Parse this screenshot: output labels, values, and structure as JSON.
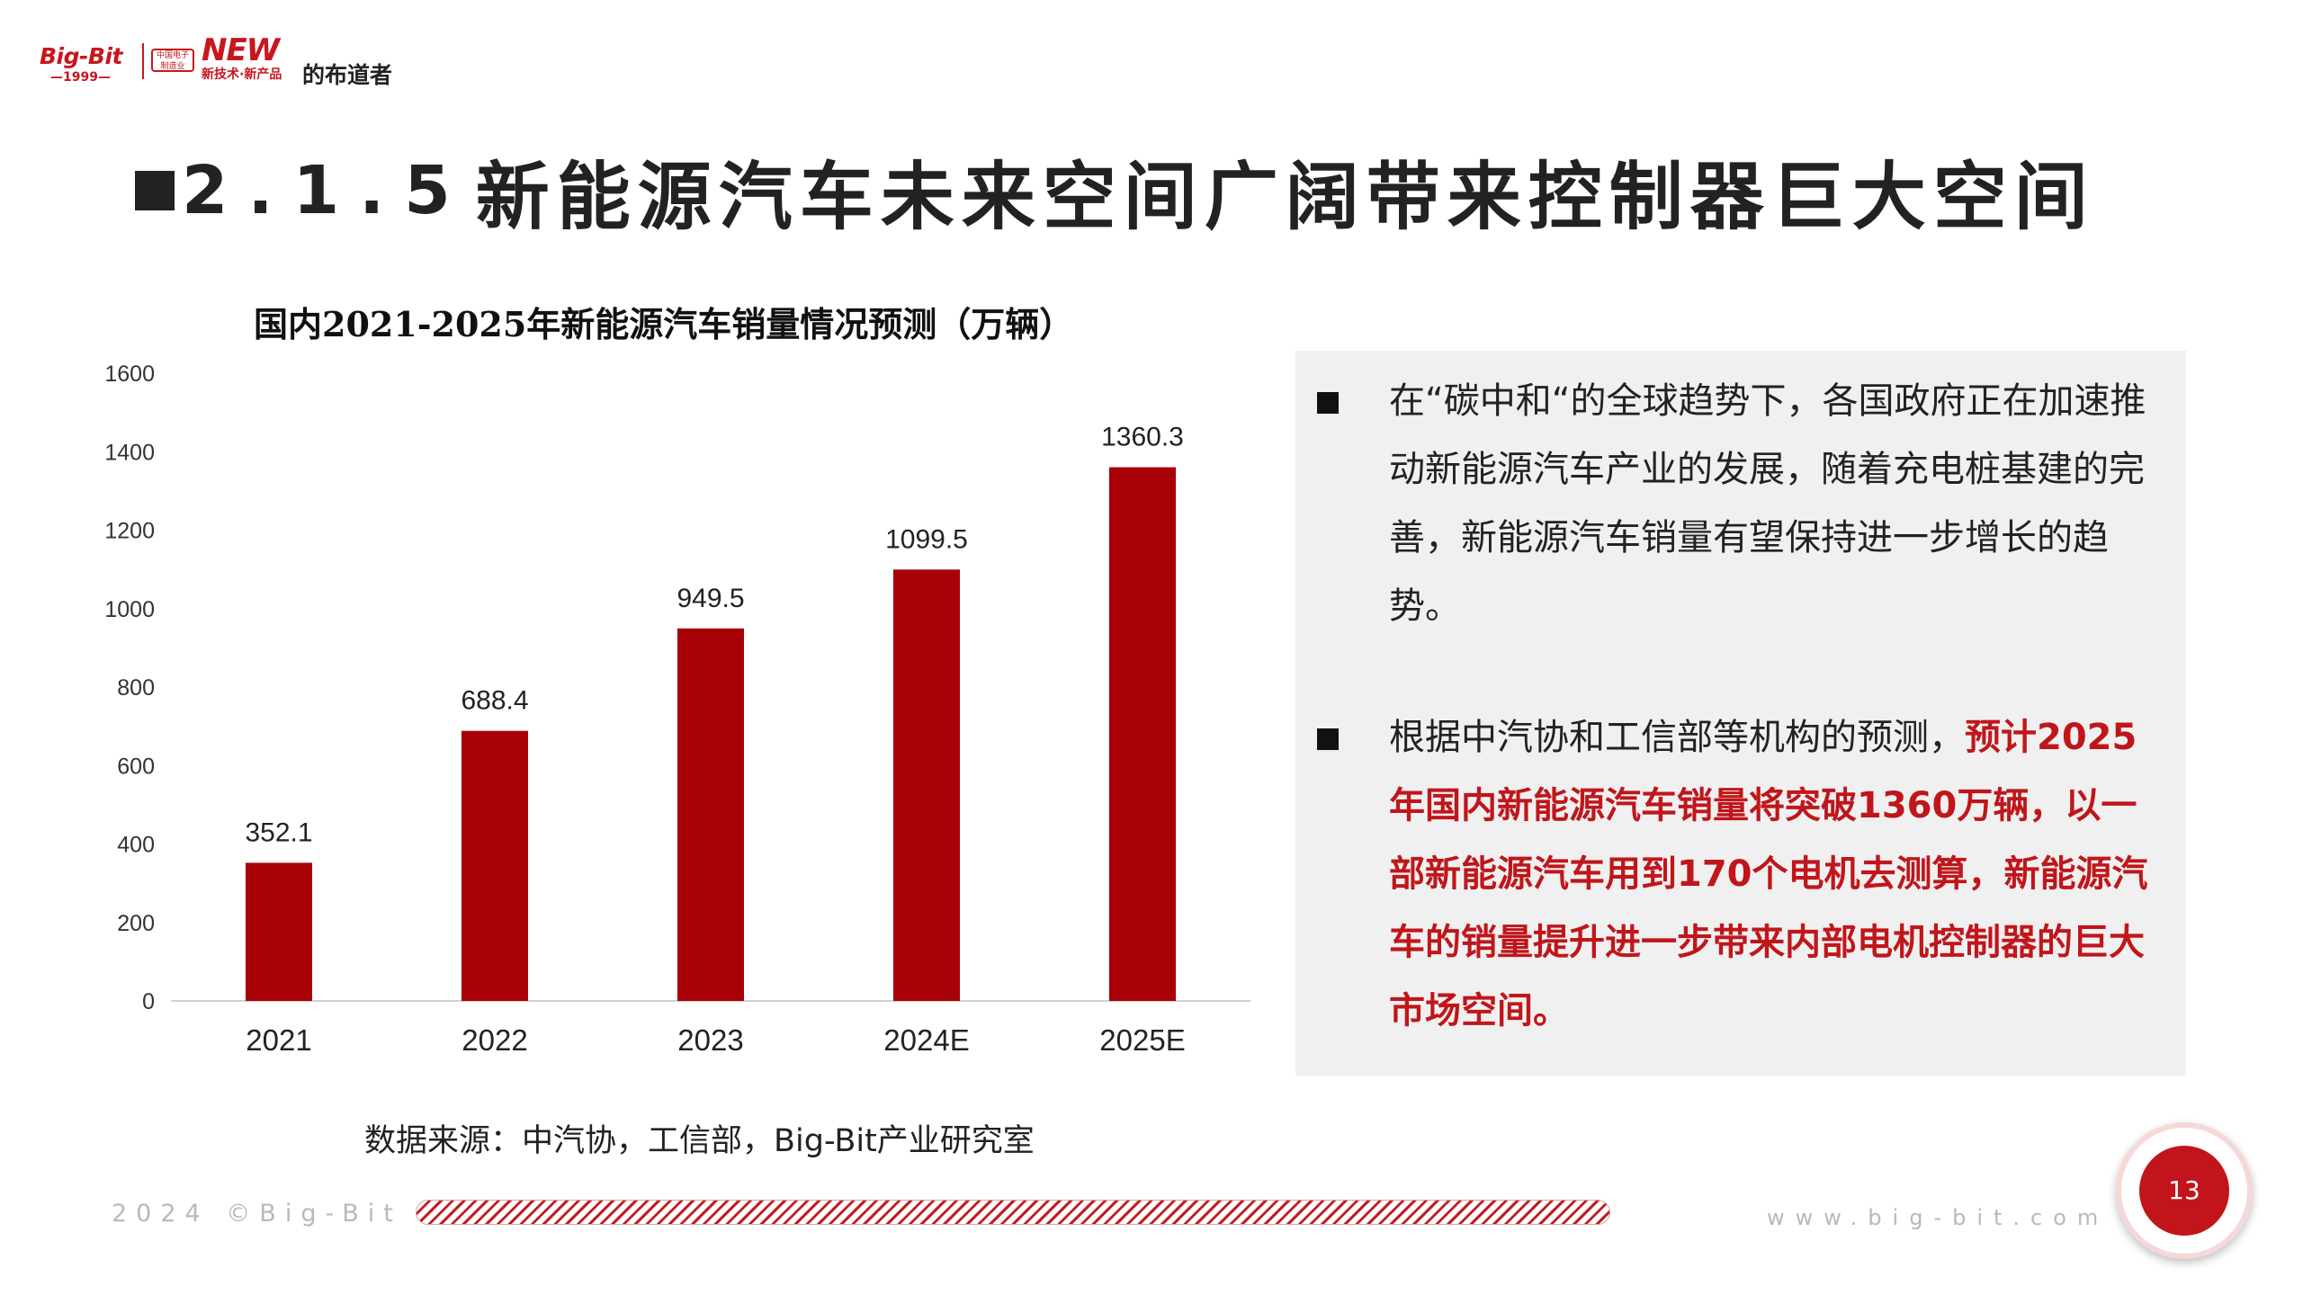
{
  "logo": {
    "brand": "Big-Bit",
    "year": "—1999—",
    "cn_box": "中国电子制造业",
    "new": "NEW",
    "tagline": "新技术·新产品",
    "tail": "的布道者"
  },
  "title": {
    "number": "2.1.5",
    "text": "新能源汽车未来空间广阔带来控制器巨大空间"
  },
  "chart_data": {
    "type": "bar",
    "title": "国内2021-2025年新能源汽车销量情况预测（万辆）",
    "categories": [
      "2021",
      "2022",
      "2023",
      "2024E",
      "2025E"
    ],
    "values": [
      352.1,
      688.4,
      949.5,
      1099.5,
      1360.3
    ],
    "value_labels": [
      "352.1",
      "688.4",
      "949.5",
      "1099.5",
      "1360.3"
    ],
    "y_ticks": [
      "0",
      "200",
      "400",
      "600",
      "800",
      "1000",
      "1200",
      "1400",
      "1600"
    ],
    "ylim": [
      0,
      1600
    ],
    "xlabel": "",
    "ylabel": "",
    "bar_color": "#a70007",
    "grid": false
  },
  "source": "数据来源：中汽协，工信部，Big-Bit产业研究室",
  "panel": {
    "bullet1": "在“碳中和“的全球趋势下，各国政府正在加速推动新能源汽车产业的发展，随着充电桩基建的完善，新能源汽车销量有望保持进一步增长的趋势。",
    "bullet2_plain": "根据中汽协和工信部等机构的预测，",
    "bullet2_highlight": "预计2025年国内新能源汽车销量将突破1360万辆，以一部新能源汽车用到170个电机去测算，新能源汽车的销量提升进一步带来内部电机控制器的巨大市场空间。",
    "highlight_color": "#c0161b"
  },
  "footer": {
    "left": "2024 ©Big-Bit",
    "right": "www.big-bit.com",
    "page_number": "13"
  }
}
